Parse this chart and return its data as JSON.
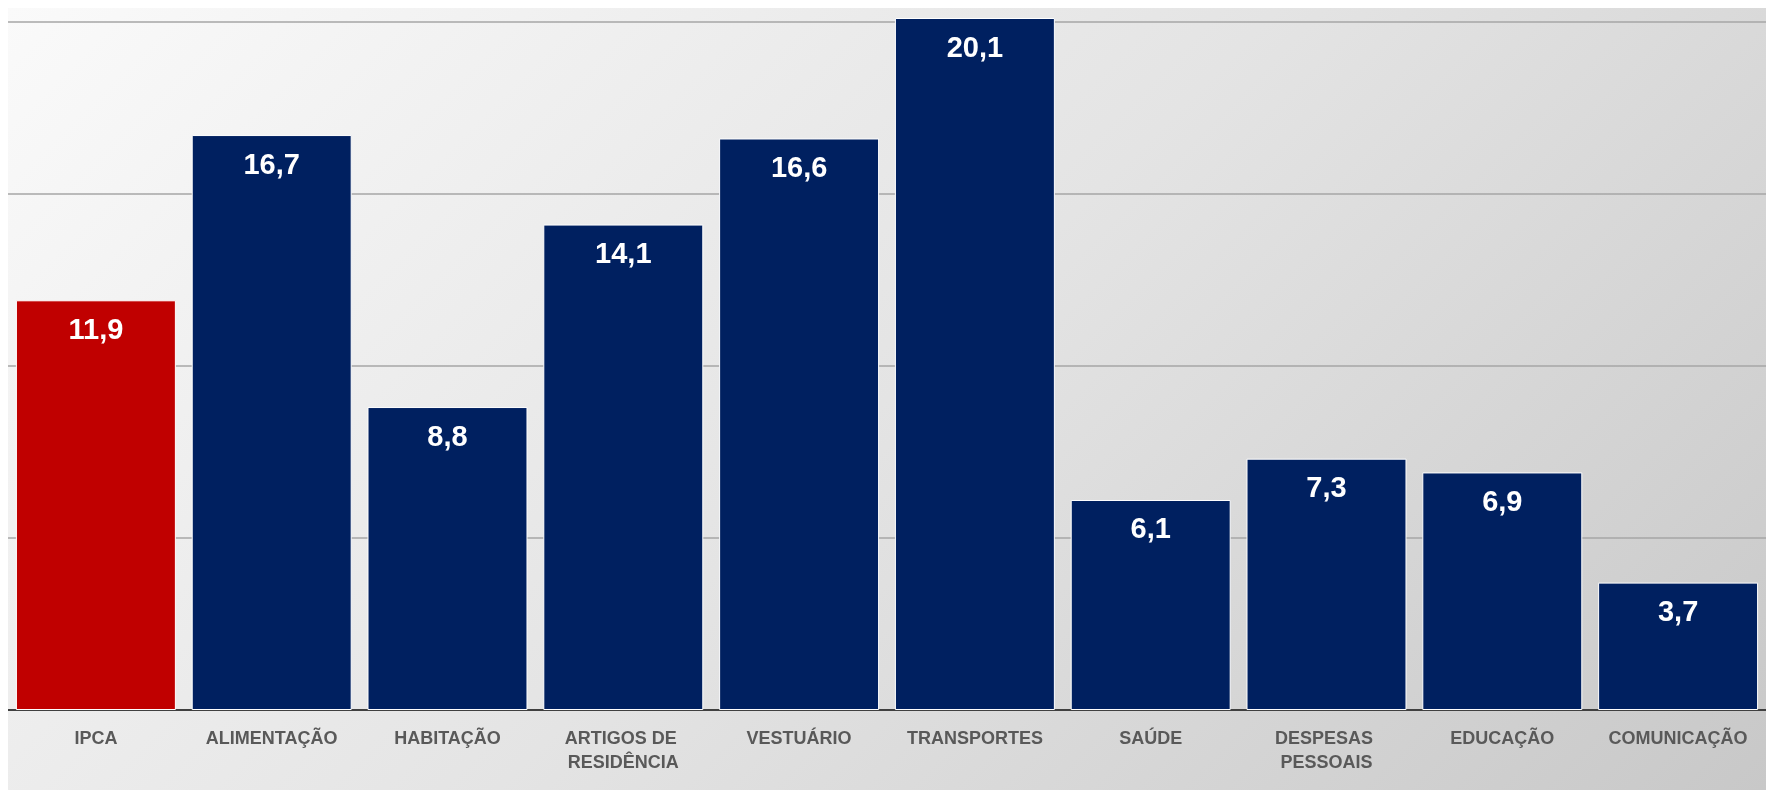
{
  "chart_data": {
    "type": "bar",
    "categories": [
      "IPCA",
      "ALIMENTAÇÃO",
      "HABITAÇÃO",
      "ARTIGOS DE RESIDÊNCIA",
      "VESTUÁRIO",
      "TRANSPORTES",
      "SAÚDE",
      "DESPESAS PESSOAIS",
      "EDUCAÇÃO",
      "COMUNICAÇÃO"
    ],
    "values": [
      11.9,
      16.7,
      8.8,
      14.1,
      16.6,
      20.1,
      6.1,
      7.3,
      6.9,
      3.7
    ],
    "value_labels": [
      "11,9",
      "16,7",
      "8,8",
      "14,1",
      "16,6",
      "20,1",
      "6,1",
      "7,3",
      "6,9",
      "3,7"
    ],
    "colors": [
      "#c00000",
      "#002060",
      "#002060",
      "#002060",
      "#002060",
      "#002060",
      "#002060",
      "#002060",
      "#002060",
      "#002060"
    ],
    "ylim": [
      0,
      20.1
    ],
    "yticks": [
      {
        "value": 0,
        "label": null
      },
      {
        "value": 5,
        "label": null
      },
      {
        "value": 10,
        "label": null
      },
      {
        "value": 15,
        "label": null
      },
      {
        "value": 20,
        "label": null
      }
    ],
    "tick_labels": "x",
    "grid": "y"
  }
}
